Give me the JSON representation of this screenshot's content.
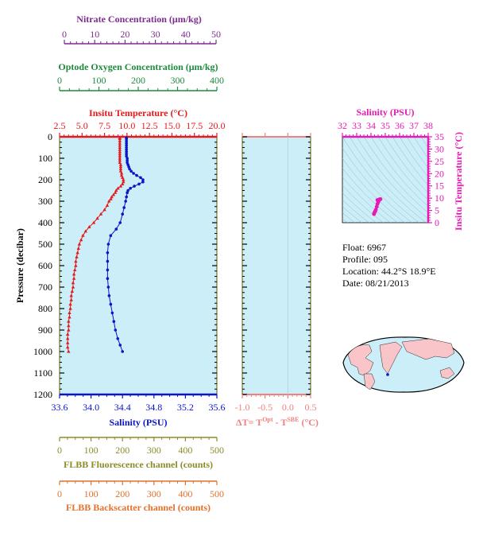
{
  "colors": {
    "nitrate": "#7B2D8E",
    "oxygen": "#1E8A3C",
    "temperature": "#E41A1C",
    "salinity": "#0A14C8",
    "deltaT": "#F08080",
    "ts_axis": "#E81AB4",
    "fluorescence": "#8C8C2A",
    "backscatter": "#E2712B",
    "panel_bg": "#CCEEF8",
    "panel_frame": "#5C5C00"
  },
  "axes": {
    "nitrate": {
      "label": "Nitrate Concentration (μm/kg)",
      "ticks": [
        "0",
        "10",
        "20",
        "30",
        "40",
        "50"
      ]
    },
    "oxygen": {
      "label": "Optode Oxygen Concentration (μm/kg)",
      "ticks": [
        "0",
        "100",
        "200",
        "300",
        "400"
      ]
    },
    "temperature": {
      "label": "Insitu Temperature (°C)",
      "ticks": [
        "2.5",
        "5.0",
        "7.5",
        "10.0",
        "12.5",
        "15.0",
        "17.5",
        "20.0"
      ]
    },
    "pressure": {
      "label": "Pressure (decibar)",
      "ticks": [
        "0",
        "100",
        "200",
        "300",
        "400",
        "500",
        "600",
        "700",
        "800",
        "900",
        "1000",
        "1100",
        "1200"
      ]
    },
    "salinity": {
      "label": "Salinity (PSU)",
      "ticks": [
        "33.6",
        "34.0",
        "34.4",
        "34.8",
        "35.2",
        "35.6"
      ]
    },
    "deltaT": {
      "label_main": "ΔT= T",
      "sup1": "Opt",
      "label_mid": " - T",
      "sup2": "SBE",
      "label_end": " (°C)",
      "ticks": [
        "-1.0",
        "-0.5",
        "0.0",
        "0.5"
      ]
    },
    "ts_salinity": {
      "label": "Salinity (PSU)",
      "ticks": [
        "32",
        "33",
        "34",
        "35",
        "36",
        "37",
        "38"
      ]
    },
    "ts_temperature": {
      "label": "Insitu Temperature (°C)",
      "ticks": [
        "0",
        "5",
        "10",
        "15",
        "20",
        "25",
        "30",
        "35"
      ]
    },
    "fluorescence": {
      "label": "FLBB Fluorescence channel (counts)",
      "ticks": [
        "0",
        "100",
        "200",
        "300",
        "400",
        "500"
      ]
    },
    "backscatter": {
      "label": "FLBB Backscatter channel (counts)",
      "ticks": [
        "0",
        "100",
        "200",
        "300",
        "400",
        "500"
      ]
    }
  },
  "info": {
    "float": "Float:  6967",
    "profile": "Profile:  095",
    "location": "Location:  44.2°S  18.9°E",
    "date": "Date:  08/21/2013"
  },
  "chart_data": [
    {
      "type": "line",
      "title": "",
      "ylabel": "Pressure (decibar)",
      "ylim": [
        1200,
        0
      ],
      "series": [
        {
          "name": "Insitu Temperature (°C)",
          "xlim": [
            2.5,
            20.0
          ],
          "pressure": [
            5,
            10,
            20,
            30,
            40,
            50,
            60,
            70,
            80,
            90,
            100,
            110,
            120,
            130,
            140,
            150,
            160,
            170,
            180,
            190,
            200,
            210,
            220,
            230,
            240,
            250,
            260,
            270,
            280,
            290,
            300,
            320,
            340,
            360,
            380,
            400,
            420,
            440,
            460,
            480,
            500,
            520,
            540,
            560,
            580,
            600,
            620,
            640,
            660,
            680,
            700,
            720,
            740,
            760,
            780,
            800,
            820,
            840,
            860,
            880,
            900,
            920,
            940,
            960,
            980,
            1000
          ],
          "values": [
            9.2,
            9.2,
            9.2,
            9.2,
            9.2,
            9.2,
            9.2,
            9.2,
            9.2,
            9.2,
            9.2,
            9.2,
            9.2,
            9.3,
            9.3,
            9.3,
            9.3,
            9.4,
            9.4,
            9.5,
            9.6,
            9.6,
            9.5,
            9.3,
            9.0,
            8.8,
            8.7,
            8.5,
            8.3,
            8.2,
            8.0,
            7.8,
            7.5,
            7.1,
            6.7,
            6.3,
            5.8,
            5.4,
            5.1,
            4.9,
            4.7,
            4.6,
            4.5,
            4.4,
            4.3,
            4.3,
            4.2,
            4.1,
            4.1,
            4.0,
            4.0,
            3.9,
            3.8,
            3.8,
            3.7,
            3.7,
            3.6,
            3.6,
            3.5,
            3.5,
            3.5,
            3.4,
            3.4,
            3.4,
            3.4,
            3.5
          ]
        },
        {
          "name": "Salinity (PSU)",
          "xlim": [
            33.6,
            35.6
          ],
          "pressure": [
            5,
            10,
            20,
            30,
            40,
            50,
            60,
            70,
            80,
            90,
            100,
            110,
            120,
            130,
            140,
            150,
            160,
            170,
            180,
            190,
            200,
            210,
            220,
            230,
            240,
            250,
            260,
            280,
            300,
            330,
            360,
            400,
            430,
            460,
            500,
            540,
            580,
            620,
            660,
            700,
            740,
            780,
            820,
            860,
            900,
            940,
            970,
            1000
          ],
          "values": [
            34.45,
            34.45,
            34.45,
            34.45,
            34.45,
            34.45,
            34.45,
            34.45,
            34.45,
            34.45,
            34.46,
            34.46,
            34.46,
            34.47,
            34.48,
            34.49,
            34.51,
            34.54,
            34.58,
            34.63,
            34.66,
            34.66,
            34.61,
            34.55,
            34.5,
            34.47,
            34.46,
            34.45,
            34.44,
            34.42,
            34.4,
            34.37,
            34.32,
            34.25,
            34.22,
            34.21,
            34.21,
            34.21,
            34.21,
            34.22,
            34.23,
            34.25,
            34.27,
            34.29,
            34.31,
            34.34,
            34.37,
            34.4
          ]
        }
      ]
    },
    {
      "type": "line",
      "title": "ΔT= T^Opt - T^SBE (°C)",
      "xlim": [
        -1.0,
        0.5
      ],
      "ylim": [
        1200,
        0
      ],
      "series": []
    },
    {
      "type": "scatter",
      "title": "T-S diagram",
      "xlabel": "Salinity (PSU)",
      "ylabel": "Insitu Temperature (°C)",
      "xlim": [
        32,
        38
      ],
      "ylim": [
        0,
        35
      ],
      "series": [
        {
          "name": "T-S",
          "x": [
            34.21,
            34.22,
            34.25,
            34.29,
            34.34,
            34.4,
            34.45,
            34.5,
            34.55,
            34.62,
            34.66,
            34.6,
            34.52,
            34.47,
            34.45
          ],
          "y": [
            3.5,
            3.8,
            4.2,
            4.6,
            5.3,
            6.5,
            7.6,
            8.3,
            9.0,
            9.5,
            9.6,
            9.5,
            9.3,
            9.2,
            9.2
          ]
        }
      ]
    }
  ]
}
